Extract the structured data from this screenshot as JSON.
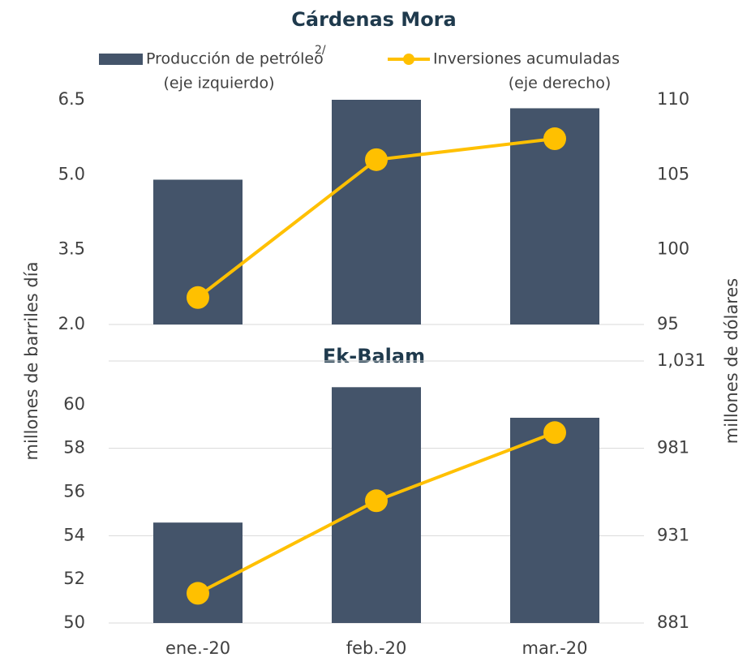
{
  "chart_data": [
    {
      "type": "bar_line",
      "title": "Cárdenas Mora",
      "ylabel": "millones de barriles día",
      "y2label": "millones de dólares",
      "categories": [
        "ene.-20",
        "feb.-20",
        "mar.-20"
      ],
      "series": [
        {
          "name": "Producción de petróleo",
          "footnote_mark": "2/",
          "axis_note": "(eje izquierdo)",
          "type": "bar",
          "color": "#44546a",
          "values": [
            4.9,
            6.5,
            6.33
          ]
        },
        {
          "name": "Inversiones acumuladas",
          "axis_note": "(eje derecho)",
          "type": "line",
          "axis": "y2",
          "color": "#ffc000",
          "values": [
            96.8,
            106.0,
            107.4
          ]
        }
      ],
      "ylim": [
        2.0,
        6.5
      ],
      "yticks": [
        {
          "value": 2,
          "label": "2.0"
        },
        3.5,
        {
          "value": 5,
          "label": "5.0"
        },
        6.5
      ],
      "y2lim": [
        95,
        110
      ],
      "y2ticks": [
        95,
        100,
        105,
        110
      ],
      "grid": false
    },
    {
      "type": "bar_line",
      "title": "Ek-Balam",
      "categories": [
        "ene.-20",
        "feb.-20",
        "mar.-20"
      ],
      "series": [
        {
          "name": "Producción de petróleo",
          "type": "bar",
          "color": "#44546a",
          "values": [
            54.6,
            60.8,
            59.4
          ]
        },
        {
          "name": "Inversiones acumuladas",
          "type": "line",
          "axis": "y2",
          "color": "#ffc000",
          "values": [
            898,
            951,
            990
          ]
        }
      ],
      "ylim": [
        50,
        62
      ],
      "yticks": [
        50,
        52,
        54,
        56,
        58,
        60
      ],
      "y2lim": [
        881,
        1031
      ],
      "y2ticks": [
        881,
        931,
        981,
        {
          "value": 1031,
          "label": "1,031"
        }
      ],
      "grid": "y2"
    }
  ]
}
